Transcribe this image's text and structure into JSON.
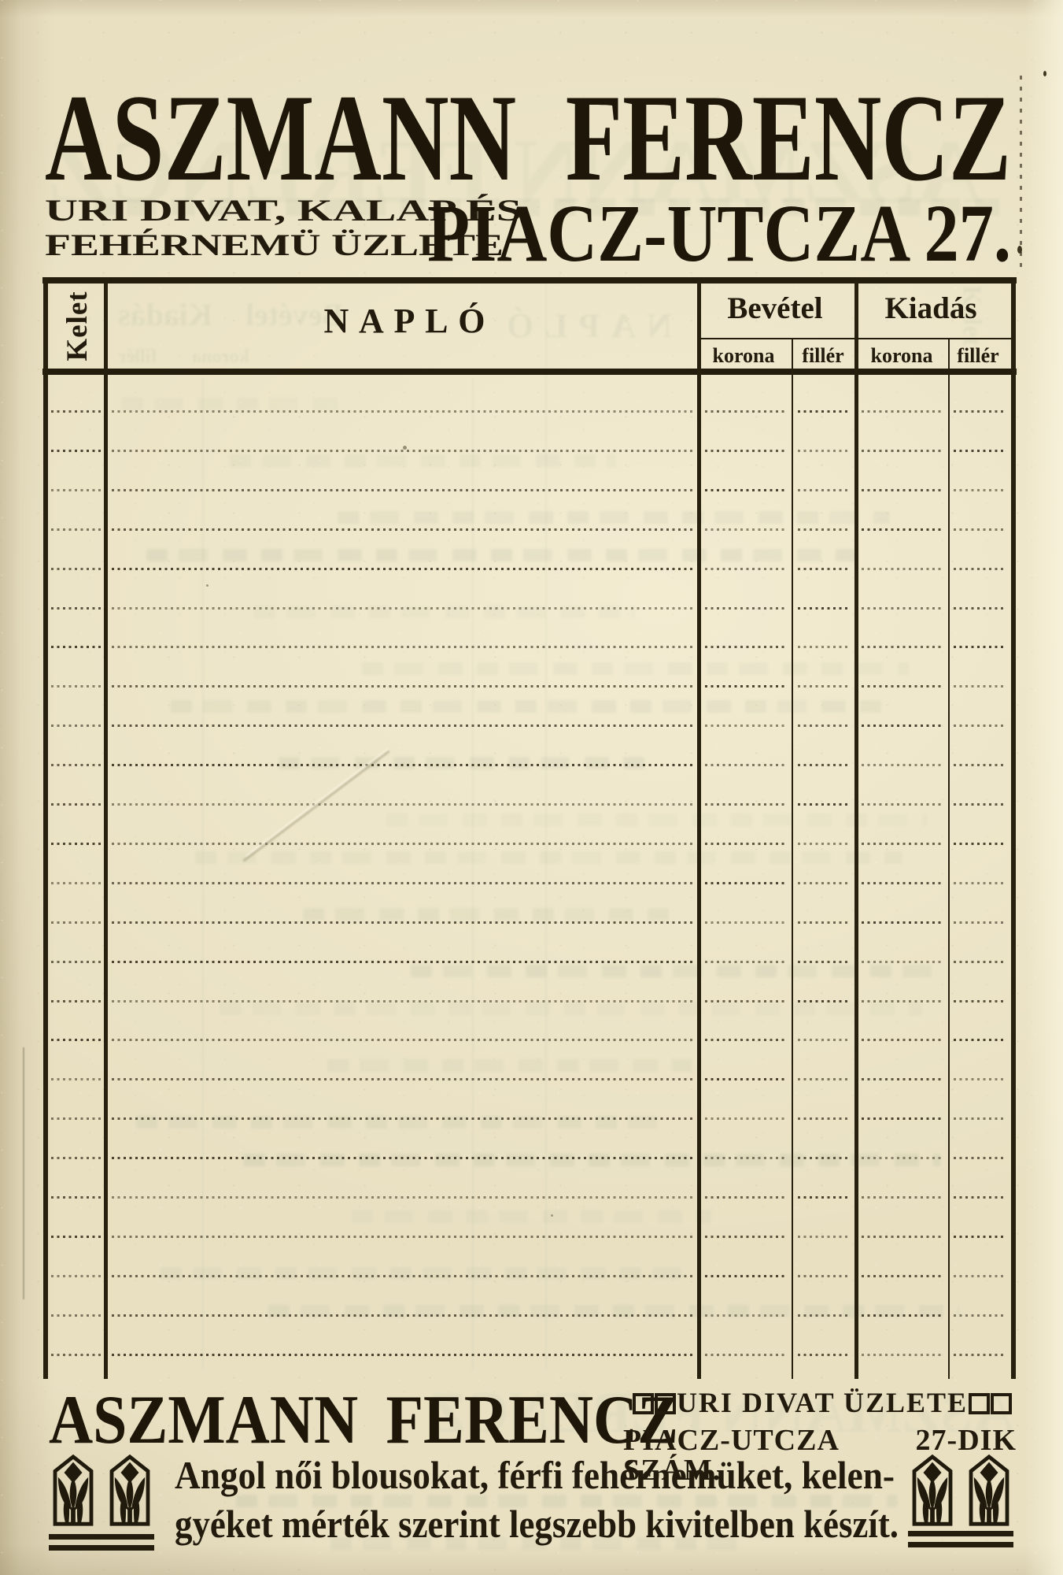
{
  "colors": {
    "paper": "#e9e0c2",
    "ink": "#221b0d",
    "rule": "#27200f",
    "ghost_bleed": "#8fa38e"
  },
  "header": {
    "title": "ASZMANN FERENCZ",
    "subtitle_line1": "URI DIVAT, KALAP ÉS",
    "subtitle_line2": "FEHÉRNEMÜ ÜZLETE",
    "address": "PIACZ-UTCZA 27."
  },
  "table": {
    "date_column_label": "Kelet",
    "journal_label": "NAPLÓ",
    "income_label": "Bevétel",
    "expense_label": "Kiadás",
    "currency_major_label": "korona",
    "currency_minor_label": "fillér",
    "ruled_row_count": 25
  },
  "footer": {
    "title": "ASZMANN FERENCZ",
    "shop_line": "URI DIVAT ÜZLETE",
    "address_line": "PIACZ-UTCZA 27-DIK SZÁM.",
    "tagline_line1": "Angol női blousokat, férfi fehérnemüket, kelen-",
    "tagline_line2": "gyéket mérték szerint legszebb kivitelben készít."
  }
}
